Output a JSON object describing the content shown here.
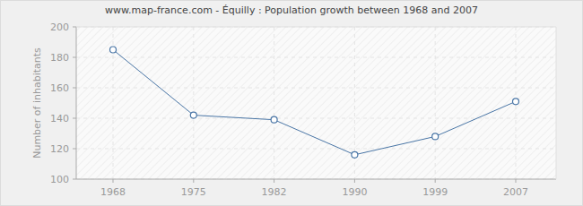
{
  "chart_data": {
    "type": "line",
    "title": "www.map-france.com - Équilly : Population growth between 1968 and 2007",
    "y_label": "Number of inhabitants",
    "categories": [
      "1968",
      "1975",
      "1982",
      "1990",
      "1999",
      "2007"
    ],
    "values": [
      185,
      142,
      139,
      116,
      128,
      151
    ],
    "color": "#4a76a6",
    "marker": "circle",
    "ylim": [
      100,
      200
    ],
    "yticks": [
      100,
      120,
      140,
      160,
      180,
      200
    ],
    "grid": true
  }
}
